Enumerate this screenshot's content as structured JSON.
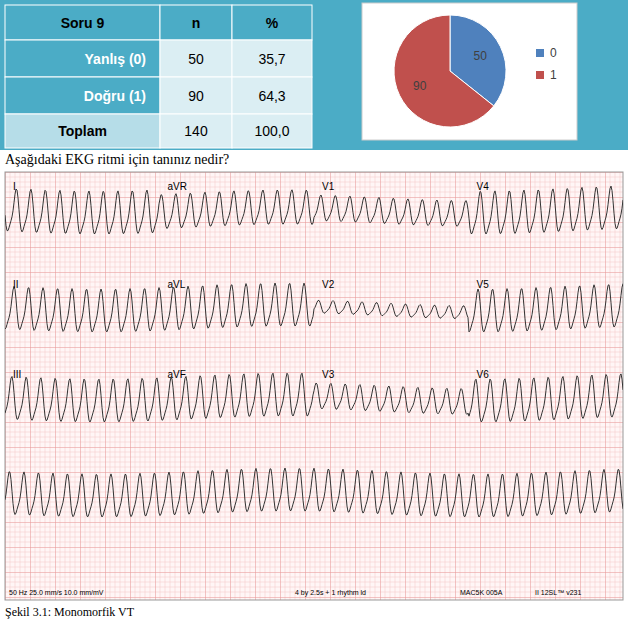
{
  "table": {
    "header": [
      "Soru 9",
      "n",
      "%"
    ],
    "rows": [
      [
        "Yanlış (0)",
        "50",
        "35,7"
      ],
      [
        "Doğru (1)",
        "90",
        "64,3"
      ],
      [
        "Toplam",
        "140",
        "100,0"
      ]
    ]
  },
  "chart_data": {
    "type": "pie",
    "categories": [
      "0",
      "1"
    ],
    "values": [
      50,
      90
    ],
    "colors": [
      "#4f81bd",
      "#c0504d"
    ],
    "data_labels": true,
    "legend": "right"
  },
  "question": "Aşağıdaki EKG ritmi için tanınız nedir?",
  "ecg": {
    "leads": [
      [
        "I",
        "aVR",
        "V1",
        "V4"
      ],
      [
        "II",
        "aVL",
        "V2",
        "V5"
      ],
      [
        "III",
        "aVF",
        "V3",
        "V6"
      ]
    ],
    "footer": [
      "50 Hz  25.0 mm/s  10.0 mm/mV",
      "4 by 2.5s + 1 rhythm ld",
      "MAC5K 005A",
      "II  12SL™  v231"
    ]
  },
  "caption": "Şekil 3.1: Monomorfik VT"
}
